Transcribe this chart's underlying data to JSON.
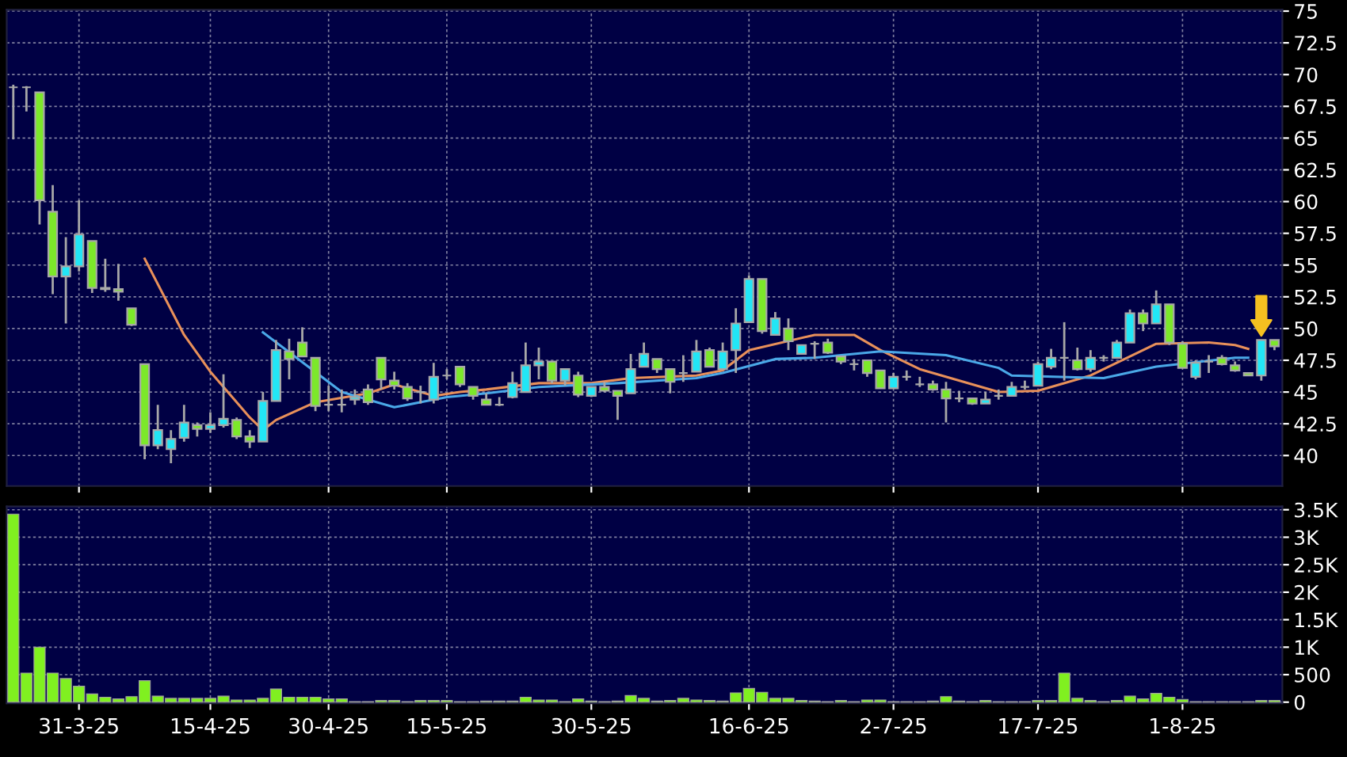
{
  "chart_data": [
    {
      "type": "candlestick",
      "categories": [
        null,
        null,
        null,
        null,
        null,
        null,
        null,
        null,
        null,
        null,
        null,
        null,
        null,
        null,
        null,
        null,
        null,
        null,
        null,
        null,
        null,
        null,
        null,
        null,
        null,
        null,
        null,
        null,
        null,
        null,
        null,
        null,
        null,
        null,
        null,
        null,
        null,
        null,
        null,
        null,
        null,
        null,
        null,
        null,
        null,
        null,
        null,
        null,
        null,
        null,
        null,
        null,
        null,
        null,
        null,
        null,
        null,
        null,
        null,
        null,
        null,
        null,
        null,
        null,
        null,
        null,
        null,
        null,
        null,
        null,
        null,
        null,
        null,
        null,
        null,
        null,
        null,
        null,
        null,
        null,
        null,
        null,
        null,
        null,
        null,
        null,
        null,
        null,
        null,
        null,
        null,
        null,
        null,
        null,
        null,
        null,
        null
      ],
      "ohlc": [
        [
          69.0,
          69.2,
          64.9,
          69.0
        ],
        [
          69.0,
          69.1,
          67.1,
          69.0
        ],
        [
          68.6,
          68.6,
          58.2,
          60.1
        ],
        [
          59.2,
          61.3,
          52.7,
          54.1
        ],
        [
          54.1,
          57.2,
          50.4,
          54.9
        ],
        [
          54.9,
          60.1,
          54.5,
          57.4
        ],
        [
          56.9,
          56.9,
          52.8,
          53.2
        ],
        [
          53.2,
          55.5,
          52.9,
          53.1
        ],
        [
          53.1,
          55.1,
          52.2,
          52.9
        ],
        [
          51.6,
          51.6,
          50.2,
          50.3
        ],
        [
          47.2,
          47.2,
          39.7,
          40.8
        ],
        [
          40.8,
          44.0,
          40.5,
          42.0
        ],
        [
          40.5,
          42.0,
          39.4,
          41.3
        ],
        [
          41.4,
          44.0,
          41.1,
          42.6
        ],
        [
          42.4,
          42.6,
          41.5,
          42.1
        ],
        [
          42.1,
          43.4,
          41.8,
          42.4
        ],
        [
          42.4,
          46.4,
          42.2,
          42.9
        ],
        [
          42.8,
          43.0,
          41.3,
          41.5
        ],
        [
          41.5,
          42.0,
          40.6,
          41.1
        ],
        [
          41.1,
          45.0,
          41.1,
          44.3
        ],
        [
          44.3,
          49.1,
          44.3,
          48.3
        ],
        [
          48.2,
          49.2,
          46.0,
          47.6
        ],
        [
          48.9,
          50.1,
          47.8,
          47.8
        ],
        [
          47.7,
          47.7,
          43.5,
          43.9
        ],
        [
          44.0,
          45.5,
          43.5,
          44.0
        ],
        [
          44.0,
          45.2,
          43.4,
          44.0
        ],
        [
          44.4,
          45.2,
          44.0,
          44.6
        ],
        [
          45.2,
          45.6,
          44.0,
          44.2
        ],
        [
          47.7,
          47.7,
          45.2,
          46.0
        ],
        [
          45.9,
          46.6,
          45.2,
          45.5
        ],
        [
          45.4,
          45.7,
          44.3,
          44.5
        ],
        [
          45.0,
          45.5,
          44.1,
          45.0
        ],
        [
          44.4,
          47.3,
          44.1,
          46.2
        ],
        [
          46.3,
          46.8,
          46.0,
          46.3
        ],
        [
          47.0,
          47.0,
          45.4,
          45.6
        ],
        [
          45.4,
          45.4,
          44.4,
          44.7
        ],
        [
          44.4,
          44.9,
          44.0,
          44.0
        ],
        [
          44.0,
          44.6,
          43.9,
          44.0
        ],
        [
          44.6,
          46.6,
          44.5,
          45.7
        ],
        [
          45.0,
          48.9,
          45.0,
          47.1
        ],
        [
          47.1,
          48.5,
          46.0,
          47.4
        ],
        [
          47.4,
          47.4,
          45.7,
          45.9
        ],
        [
          45.9,
          46.8,
          45.5,
          46.8
        ],
        [
          46.3,
          46.6,
          44.6,
          44.8
        ],
        [
          44.7,
          45.4,
          44.6,
          45.4
        ],
        [
          45.4,
          45.8,
          45.0,
          45.1
        ],
        [
          45.1,
          45.1,
          42.8,
          44.7
        ],
        [
          44.9,
          48.0,
          44.9,
          46.8
        ],
        [
          47.0,
          48.9,
          47.0,
          48.0
        ],
        [
          47.6,
          47.6,
          46.5,
          46.8
        ],
        [
          46.8,
          46.8,
          44.9,
          45.8
        ],
        [
          46.5,
          47.9,
          45.8,
          46.5
        ],
        [
          46.6,
          49.1,
          46.6,
          48.2
        ],
        [
          48.3,
          48.5,
          47.0,
          47.0
        ],
        [
          46.8,
          48.9,
          46.8,
          48.2
        ],
        [
          48.3,
          51.6,
          46.5,
          50.4
        ],
        [
          50.5,
          54.2,
          50.5,
          53.9
        ],
        [
          53.9,
          53.9,
          49.6,
          49.8
        ],
        [
          49.5,
          51.3,
          49.5,
          50.8
        ],
        [
          50.0,
          50.8,
          48.3,
          49.0
        ],
        [
          48.0,
          48.7,
          48.0,
          48.7
        ],
        [
          48.8,
          49.0,
          47.6,
          48.8
        ],
        [
          48.9,
          49.2,
          48.0,
          48.1
        ],
        [
          47.8,
          47.8,
          47.2,
          47.4
        ],
        [
          47.2,
          47.6,
          46.7,
          47.2
        ],
        [
          47.5,
          47.5,
          46.2,
          46.5
        ],
        [
          46.7,
          46.7,
          45.3,
          45.3
        ],
        [
          45.3,
          46.5,
          45.3,
          46.2
        ],
        [
          46.2,
          46.7,
          45.9,
          46.2
        ],
        [
          45.6,
          46.2,
          45.4,
          45.6
        ],
        [
          45.6,
          45.9,
          45.1,
          45.2
        ],
        [
          45.2,
          45.8,
          42.6,
          44.5
        ],
        [
          44.5,
          45.1,
          44.2,
          44.5
        ],
        [
          44.5,
          44.5,
          44.0,
          44.1
        ],
        [
          44.1,
          45.0,
          44.1,
          44.4
        ],
        [
          44.7,
          45.2,
          44.4,
          44.7
        ],
        [
          44.7,
          45.8,
          44.7,
          45.4
        ],
        [
          45.4,
          45.9,
          45.2,
          45.4
        ],
        [
          45.5,
          47.4,
          45.5,
          47.2
        ],
        [
          47.0,
          48.4,
          46.8,
          47.7
        ],
        [
          47.7,
          50.5,
          45.9,
          47.7
        ],
        [
          47.5,
          48.5,
          46.7,
          46.8
        ],
        [
          46.8,
          48.3,
          46.6,
          47.7
        ],
        [
          47.7,
          47.9,
          47.4,
          47.7
        ],
        [
          47.7,
          49.1,
          47.7,
          48.9
        ],
        [
          48.9,
          51.5,
          48.9,
          51.2
        ],
        [
          51.2,
          51.5,
          49.8,
          50.4
        ],
        [
          50.4,
          53.0,
          50.4,
          51.9
        ],
        [
          51.9,
          51.9,
          48.7,
          48.9
        ],
        [
          48.8,
          49.0,
          46.9,
          46.9
        ],
        [
          46.2,
          47.5,
          46.0,
          47.3
        ],
        [
          47.4,
          47.9,
          46.5,
          47.4
        ],
        [
          47.7,
          47.9,
          47.1,
          47.2
        ],
        [
          47.1,
          47.4,
          46.6,
          46.7
        ],
        [
          46.5,
          46.5,
          46.3,
          46.3
        ],
        [
          46.3,
          49.1,
          45.9,
          49.1
        ],
        [
          49.1,
          49.1,
          48.3,
          48.6
        ]
      ],
      "colors": [
        "#9a9a9a",
        "#9a9a9a",
        "#7ce82a",
        "#7ce82a",
        "#22e6f6",
        "#22e6f6",
        "#7ce82a",
        "#7ce82a",
        "#7ce82a",
        "#7ce82a",
        "#7ce82a",
        "#22e6f6",
        "#22e6f6",
        "#22e6f6",
        "#7ce82a",
        "#22e6f6",
        "#22e6f6",
        "#7ce82a",
        "#7ce82a",
        "#22e6f6",
        "#22e6f6",
        "#7ce82a",
        "#7ce82a",
        "#7ce82a",
        "#9a9a9a",
        "#9a9a9a",
        "#22e6f6",
        "#7ce82a",
        "#7ce82a",
        "#7ce82a",
        "#7ce82a",
        "#9a9a9a",
        "#22e6f6",
        "#9a9a9a",
        "#7ce82a",
        "#7ce82a",
        "#7ce82a",
        "#9a9a9a",
        "#22e6f6",
        "#22e6f6",
        "#22e6f6",
        "#7ce82a",
        "#22e6f6",
        "#7ce82a",
        "#22e6f6",
        "#7ce82a",
        "#7ce82a",
        "#22e6f6",
        "#22e6f6",
        "#7ce82a",
        "#7ce82a",
        "#9a9a9a",
        "#22e6f6",
        "#7ce82a",
        "#22e6f6",
        "#22e6f6",
        "#22e6f6",
        "#7ce82a",
        "#22e6f6",
        "#7ce82a",
        "#22e6f6",
        "#9a9a9a",
        "#7ce82a",
        "#7ce82a",
        "#9a9a9a",
        "#7ce82a",
        "#7ce82a",
        "#22e6f6",
        "#9a9a9a",
        "#9a9a9a",
        "#7ce82a",
        "#7ce82a",
        "#9a9a9a",
        "#7ce82a",
        "#22e6f6",
        "#9a9a9a",
        "#22e6f6",
        "#9a9a9a",
        "#22e6f6",
        "#22e6f6",
        "#9a9a9a",
        "#7ce82a",
        "#22e6f6",
        "#9a9a9a",
        "#22e6f6",
        "#22e6f6",
        "#7ce82a",
        "#22e6f6",
        "#7ce82a",
        "#7ce82a",
        "#22e6f6",
        "#9a9a9a",
        "#7ce82a",
        "#7ce82a",
        "#7ce82a",
        "#22e6f6",
        "#7ce82a"
      ],
      "series": [
        {
          "type": "line",
          "color": "#e8905a",
          "values": [
            null,
            null,
            null,
            null,
            null,
            null,
            null,
            null,
            null,
            null,
            55.5,
            null,
            null,
            49.5,
            null,
            46.6,
            null,
            null,
            43.0,
            42.0,
            42.8,
            null,
            null,
            44.2,
            null,
            null,
            null,
            44.9,
            null,
            45.6,
            null,
            null,
            44.7,
            null,
            45.0,
            null,
            45.2,
            null,
            null,
            null,
            45.7,
            null,
            null,
            null,
            45.7,
            null,
            null,
            46.1,
            null,
            null,
            null,
            null,
            46.3,
            null,
            46.7,
            null,
            48.3,
            null,
            null,
            null,
            null,
            49.5,
            null,
            null,
            49.5,
            null,
            48.3,
            null,
            null,
            46.8,
            null,
            null,
            null,
            null,
            null,
            45.0,
            null,
            null,
            45.1,
            null,
            null,
            null,
            46.3,
            null,
            null,
            null,
            null,
            48.8,
            null,
            null,
            null,
            48.9,
            null,
            48.7,
            48.4,
            null,
            null
          ]
        },
        {
          "type": "line",
          "color": "#4aa8e8",
          "values": [
            null,
            null,
            null,
            null,
            null,
            null,
            null,
            null,
            null,
            null,
            null,
            null,
            null,
            null,
            null,
            null,
            null,
            null,
            null,
            49.7,
            null,
            null,
            null,
            null,
            null,
            45.0,
            null,
            null,
            null,
            43.8,
            null,
            null,
            null,
            44.6,
            null,
            null,
            44.9,
            null,
            null,
            null,
            45.4,
            null,
            null,
            null,
            null,
            null,
            45.7,
            null,
            null,
            null,
            null,
            null,
            46.1,
            null,
            46.5,
            null,
            null,
            null,
            47.6,
            null,
            null,
            47.7,
            null,
            null,
            null,
            null,
            48.2,
            null,
            null,
            null,
            null,
            47.9,
            null,
            null,
            null,
            46.9,
            46.3,
            null,
            null,
            null,
            null,
            null,
            null,
            46.1,
            null,
            null,
            null,
            47.0,
            null,
            null,
            null,
            null,
            null,
            47.7,
            47.7,
            null,
            null
          ]
        }
      ],
      "ylim": [
        37.6,
        75.1
      ],
      "yticks": [
        40,
        42.5,
        45,
        47.5,
        50,
        52.5,
        55,
        57.5,
        60,
        62.5,
        65,
        67.5,
        70,
        72.5,
        75
      ],
      "grid": true,
      "tick_labels": "y"
    },
    {
      "type": "bar",
      "categories": [
        null,
        null,
        null,
        null,
        null,
        "31-3-25",
        null,
        null,
        null,
        null,
        null,
        null,
        null,
        null,
        null,
        "15-4-25",
        null,
        null,
        null,
        null,
        null,
        null,
        null,
        null,
        "30-4-25",
        null,
        null,
        null,
        null,
        null,
        null,
        null,
        null,
        "15-5-25",
        null,
        null,
        null,
        null,
        null,
        null,
        null,
        null,
        null,
        null,
        "30-5-25",
        null,
        null,
        null,
        null,
        null,
        null,
        null,
        null,
        null,
        null,
        null,
        "16-6-25",
        null,
        null,
        null,
        null,
        null,
        null,
        null,
        null,
        null,
        null,
        "2-7-25",
        null,
        null,
        null,
        null,
        null,
        null,
        null,
        null,
        null,
        null,
        "17-7-25",
        null,
        null,
        null,
        null,
        null,
        null,
        null,
        null,
        null,
        null,
        "1-8-25",
        null,
        null,
        null,
        null,
        null,
        null,
        null
      ],
      "values": [
        3420,
        530,
        1000,
        530,
        430,
        290,
        150,
        90,
        60,
        100,
        390,
        110,
        70,
        70,
        70,
        70,
        110,
        40,
        40,
        70,
        240,
        90,
        90,
        90,
        60,
        60,
        10,
        10,
        30,
        30,
        10,
        30,
        30,
        30,
        10,
        10,
        20,
        20,
        20,
        90,
        40,
        40,
        10,
        60,
        20,
        10,
        20,
        120,
        70,
        20,
        30,
        70,
        40,
        30,
        20,
        170,
        250,
        180,
        70,
        70,
        30,
        20,
        10,
        30,
        10,
        40,
        40,
        10,
        10,
        10,
        20,
        100,
        20,
        10,
        30,
        10,
        10,
        10,
        30,
        30,
        530,
        70,
        30,
        10,
        30,
        110,
        60,
        160,
        90,
        50,
        10,
        10,
        10,
        10,
        10,
        30,
        30
      ],
      "color": "#80f020",
      "ylim": [
        -20,
        3560
      ],
      "yticks": [
        0,
        500,
        {
          "value": 1000,
          "label": "1K"
        },
        {
          "value": 1500,
          "label": "1.5K"
        },
        {
          "value": 2000,
          "label": "2K"
        },
        {
          "value": 2500,
          "label": "2.5K"
        },
        {
          "value": 3000,
          "label": "3K"
        },
        {
          "value": 3500,
          "label": "3.5K"
        }
      ],
      "grid": true
    }
  ]
}
